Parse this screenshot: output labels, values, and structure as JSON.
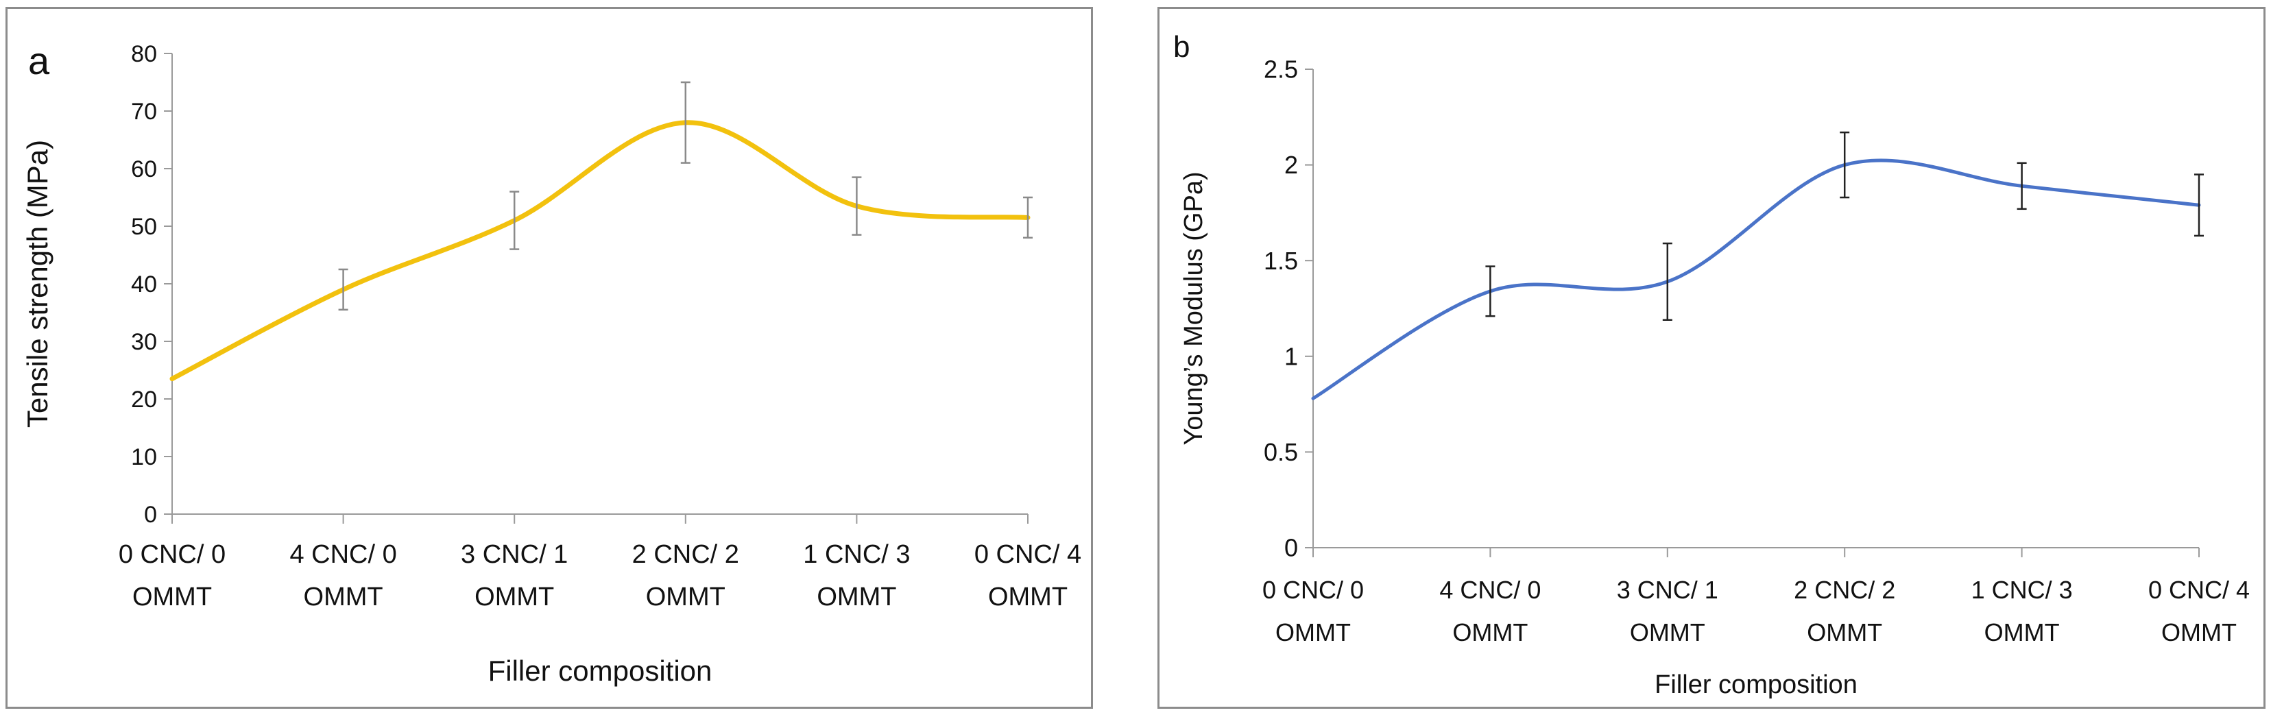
{
  "chart_data": [
    {
      "type": "line",
      "panel_label": "a",
      "title": "",
      "xlabel": "Filler composition",
      "ylabel": "Tensile strength (MPa)",
      "ylim": [
        0,
        80
      ],
      "yticks": [
        0,
        10,
        20,
        30,
        40,
        50,
        60,
        70,
        80
      ],
      "grid": false,
      "smooth": true,
      "categories": [
        [
          "0 CNC/ 0",
          "OMMT"
        ],
        [
          "4 CNC/ 0",
          "OMMT"
        ],
        [
          "3 CNC/ 1",
          "OMMT"
        ],
        [
          "2 CNC/ 2",
          "OMMT"
        ],
        [
          "1 CNC/ 3",
          "OMMT"
        ],
        [
          "0 CNC/ 4",
          "OMMT"
        ]
      ],
      "series": [
        {
          "name": "Tensile strength",
          "color": "#F2C10E",
          "values": [
            23.5,
            39,
            51,
            68,
            53.5,
            51.5
          ],
          "errors": [
            0,
            3.5,
            5,
            7,
            5,
            3.5
          ]
        }
      ]
    },
    {
      "type": "line",
      "panel_label": "b",
      "title": "",
      "xlabel": "Filler  composition",
      "ylabel": "Young’s Modulus (GPa)",
      "ylim": [
        0,
        2.5
      ],
      "yticks": [
        "0",
        "0.5",
        "1",
        "1.5",
        "2",
        "2.5"
      ],
      "grid": false,
      "smooth": true,
      "categories": [
        [
          "0 CNC/ 0",
          "OMMT"
        ],
        [
          "4 CNC/ 0",
          "OMMT"
        ],
        [
          "3 CNC/ 1",
          "OMMT"
        ],
        [
          "2 CNC/ 2",
          "OMMT"
        ],
        [
          "1 CNC/ 3",
          "OMMT"
        ],
        [
          "0 CNC/ 4",
          "OMMT"
        ]
      ],
      "series": [
        {
          "name": "Young's Modulus",
          "color": "#4A73C8",
          "values": [
            0.78,
            1.34,
            1.39,
            2.0,
            1.89,
            1.79
          ],
          "errors": [
            0,
            0.13,
            0.2,
            0.17,
            0.12,
            0.16
          ]
        }
      ]
    }
  ]
}
